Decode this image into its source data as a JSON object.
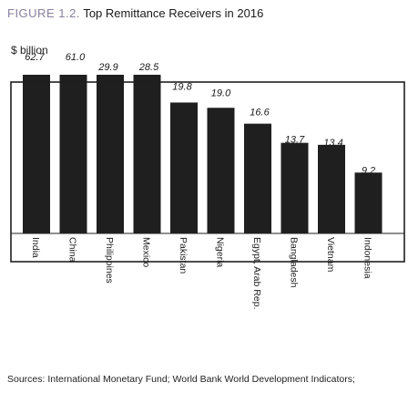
{
  "figure": {
    "number": "FIGURE 1.2.",
    "title": "Top Remittance Receivers in 2016",
    "unit": "$ billion",
    "source": "Sources: International Monetary Fund; World Bank World Development Indicators;"
  },
  "colors": {
    "bar": "#1f1f1f",
    "frame": "#1f1f1f",
    "title_number": "#8a7f9e"
  },
  "chart_data": {
    "type": "bar",
    "title": "Top Remittance Receivers in 2016",
    "ylabel": "$ billion",
    "xlabel": "",
    "categories": [
      "India",
      "China",
      "Philippines",
      "Mexico",
      "Pakistan",
      "Nigeria",
      "Egypt, Arab Rep.",
      "Bangladesh",
      "Vietnam",
      "Indonesia"
    ],
    "values": [
      62.7,
      61.0,
      29.9,
      28.5,
      19.8,
      19.0,
      16.6,
      13.7,
      13.4,
      9.2
    ],
    "value_labels": [
      "62.7",
      "61.0",
      "29.9",
      "28.5",
      "19.8",
      "19.0",
      "16.6",
      "13.7",
      "13.4",
      "9.2"
    ],
    "ylim": [
      0,
      32
    ],
    "grid": false,
    "legend": "none"
  }
}
